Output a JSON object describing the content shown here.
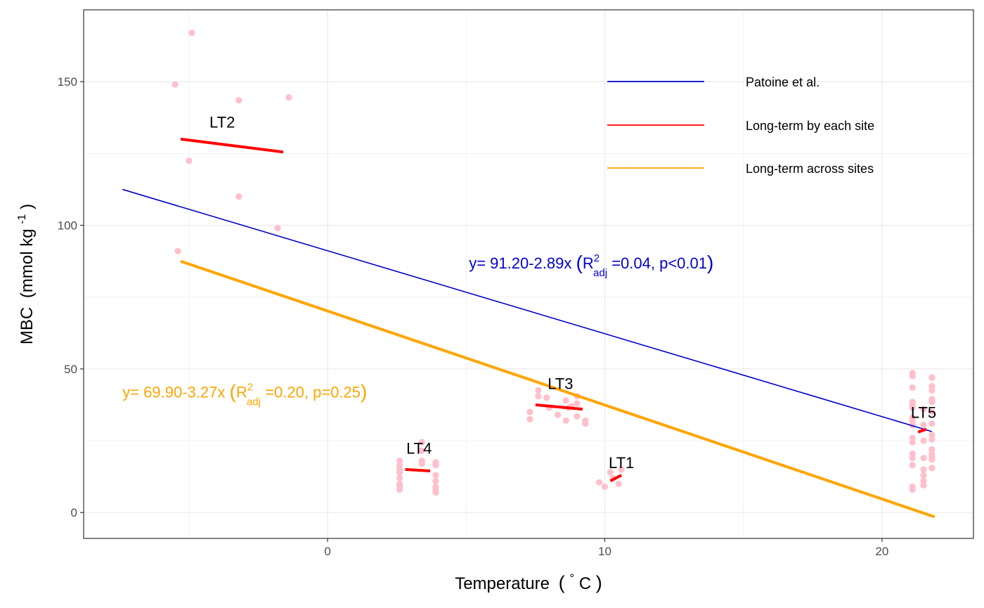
{
  "chart_data": {
    "type": "scatter",
    "xlabel": {
      "main": "Temperature",
      "paren_open": "(",
      "degree": "°",
      "unit": " C",
      "paren_close": ")"
    },
    "ylabel": {
      "main": "MBC",
      "unit": "(mmol kg",
      "exp": "-1",
      "close": ")"
    },
    "xlim": [
      -8.8,
      23.3
    ],
    "ylim": [
      -9,
      175
    ],
    "x_ticks": [
      0,
      10,
      20
    ],
    "y_ticks": [
      0,
      50,
      100,
      150
    ],
    "x_minor": [
      -5,
      5,
      15
    ],
    "y_minor": [
      25,
      75,
      125
    ],
    "grid": true,
    "legend_position": "top-right",
    "colors": {
      "points": "#ffc0cb",
      "patoine": "#0000cd",
      "by_site": "#ff0000",
      "across_sites": "#ffa500",
      "grid": "#ebebeb",
      "frame": "#333333"
    },
    "legend": [
      {
        "label": "Patoine et al.",
        "color": "#0000cd",
        "key": "patoine"
      },
      {
        "label": "Long-term by each site",
        "color": "#ff0000",
        "key": "by_site"
      },
      {
        "label": "Long-term across sites",
        "color": "#ffa500",
        "key": "across_sites"
      }
    ],
    "points": [
      [
        -4.9,
        167
      ],
      [
        -5.5,
        149
      ],
      [
        -3.2,
        143.5
      ],
      [
        -1.4,
        144.5
      ],
      [
        -5.0,
        122.5
      ],
      [
        -3.2,
        110
      ],
      [
        -1.8,
        99
      ],
      [
        -5.4,
        91
      ],
      [
        2.6,
        18
      ],
      [
        2.6,
        16.5
      ],
      [
        2.6,
        15
      ],
      [
        2.6,
        14
      ],
      [
        2.6,
        12
      ],
      [
        2.6,
        10
      ],
      [
        2.6,
        9
      ],
      [
        2.6,
        8
      ],
      [
        3.4,
        24.5
      ],
      [
        3.4,
        21.5
      ],
      [
        3.4,
        18
      ],
      [
        3.4,
        17
      ],
      [
        3.9,
        17.5
      ],
      [
        3.9,
        16.5
      ],
      [
        3.9,
        13
      ],
      [
        3.9,
        11
      ],
      [
        3.9,
        9
      ],
      [
        3.9,
        8
      ],
      [
        3.9,
        7
      ],
      [
        7.3,
        35
      ],
      [
        7.3,
        32.5
      ],
      [
        7.6,
        42.5
      ],
      [
        7.6,
        40.5
      ],
      [
        7.9,
        40
      ],
      [
        8.0,
        36.5
      ],
      [
        8.3,
        34
      ],
      [
        8.6,
        32
      ],
      [
        8.7,
        36.5
      ],
      [
        8.8,
        37
      ],
      [
        9.0,
        40.5
      ],
      [
        9.0,
        38
      ],
      [
        9.0,
        33.5
      ],
      [
        9.3,
        32
      ],
      [
        9.3,
        31
      ],
      [
        8.6,
        39
      ],
      [
        9.8,
        10.5
      ],
      [
        10.0,
        9
      ],
      [
        10.2,
        14
      ],
      [
        10.5,
        10
      ],
      [
        10.6,
        15
      ],
      [
        10.3,
        12
      ],
      [
        21.1,
        48.5
      ],
      [
        21.1,
        47.5
      ],
      [
        21.1,
        43.5
      ],
      [
        21.1,
        38.5
      ],
      [
        21.1,
        37.5
      ],
      [
        21.1,
        36.5
      ],
      [
        21.1,
        33
      ],
      [
        21.1,
        32
      ],
      [
        21.1,
        30.5
      ],
      [
        21.1,
        26
      ],
      [
        21.1,
        24.5
      ],
      [
        21.1,
        20.5
      ],
      [
        21.1,
        19
      ],
      [
        21.1,
        16.5
      ],
      [
        21.1,
        9
      ],
      [
        21.1,
        8
      ],
      [
        21.5,
        36
      ],
      [
        21.5,
        30.5
      ],
      [
        21.5,
        25
      ],
      [
        21.5,
        19
      ],
      [
        21.5,
        15
      ],
      [
        21.5,
        13
      ],
      [
        21.5,
        11
      ],
      [
        21.5,
        9.5
      ],
      [
        21.8,
        47
      ],
      [
        21.8,
        44
      ],
      [
        21.8,
        42.5
      ],
      [
        21.8,
        39.5
      ],
      [
        21.8,
        38.5
      ],
      [
        21.8,
        35
      ],
      [
        21.8,
        31
      ],
      [
        21.8,
        27
      ],
      [
        21.8,
        25.5
      ],
      [
        21.8,
        22
      ],
      [
        21.8,
        20.5
      ],
      [
        21.8,
        19.5
      ],
      [
        21.8,
        18.5
      ],
      [
        21.8,
        15.5
      ]
    ],
    "regressions": [
      {
        "name": "patoine",
        "x": [
          -7.4,
          21.8
        ],
        "y": [
          112.5,
          28.2
        ]
      },
      {
        "name": "across_sites",
        "x": [
          -5.3,
          21.9
        ],
        "y": [
          87.5,
          -1.5
        ]
      }
    ],
    "site_lines": [
      {
        "name": "LT2",
        "x": [
          -5.3,
          -1.6
        ],
        "y": [
          130,
          125.5
        ]
      },
      {
        "name": "LT4",
        "x": [
          2.8,
          3.7
        ],
        "y": [
          15,
          14.5
        ]
      },
      {
        "name": "LT3",
        "x": [
          7.5,
          9.2
        ],
        "y": [
          37.5,
          36
        ]
      },
      {
        "name": "LT1",
        "x": [
          10.2,
          10.6
        ],
        "y": [
          11,
          13
        ]
      },
      {
        "name": "LT5",
        "x": [
          21.3,
          21.6
        ],
        "y": [
          28,
          29
        ]
      }
    ],
    "site_labels": [
      {
        "label": "LT2",
        "x": -3.8,
        "y": 134
      },
      {
        "label": "LT3",
        "x": 8.4,
        "y": 43
      },
      {
        "label": "LT4",
        "x": 3.3,
        "y": 20.5
      },
      {
        "label": "LT1",
        "x": 10.6,
        "y": 15.5
      },
      {
        "label": "LT5",
        "x": 21.5,
        "y": 33
      }
    ],
    "annotations": [
      {
        "key": "patoine",
        "x": 5.1,
        "y": 85,
        "prefix": "y= 91.20-2.89x ",
        "r": "R",
        "sup": "2",
        "sub": "adj",
        "suffix": " =0.04, p<0.01",
        "color": "#0000cd"
      },
      {
        "key": "across_sites",
        "x": -7.4,
        "y": 40,
        "prefix": "y= 69.90-3.27x ",
        "r": "R",
        "sup": "2",
        "sub": "adj",
        "suffix": " =0.20, p=0.25",
        "color": "#ffa500"
      }
    ]
  }
}
